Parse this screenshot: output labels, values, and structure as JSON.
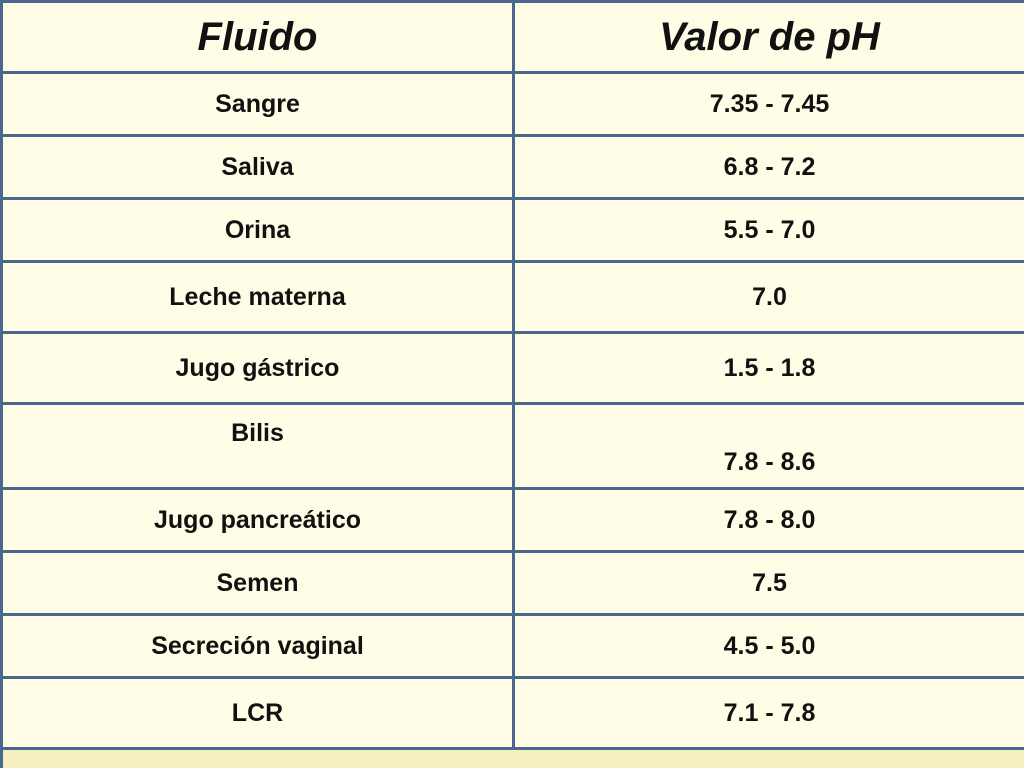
{
  "table": {
    "headers": {
      "fluid": "Fluido",
      "ph": "Valor  de  pH"
    },
    "rows": [
      {
        "fluid": "Sangre",
        "ph": "7.35  -  7.45"
      },
      {
        "fluid": "Saliva",
        "ph": "6.8  -  7.2"
      },
      {
        "fluid": "Orina",
        "ph": "5.5  -  7.0"
      },
      {
        "fluid": "Leche  materna",
        "ph": "7.0"
      },
      {
        "fluid": "Jugo  gástrico",
        "ph": "1.5  -  1.8"
      },
      {
        "fluid": "Bilis",
        "ph": "7.8  -  8.6"
      },
      {
        "fluid": "Jugo  pancreático",
        "ph": "7.8  -  8.0"
      },
      {
        "fluid": "Semen",
        "ph": "7.5"
      },
      {
        "fluid": "Secreción  vaginal",
        "ph": "4.5  -  5.0"
      },
      {
        "fluid": "LCR",
        "ph": "7.1  - 7.8"
      }
    ]
  },
  "colors": {
    "grid": "#4a6790",
    "cell_background": "#fffde6",
    "footer_background": "#f5f0c0"
  }
}
